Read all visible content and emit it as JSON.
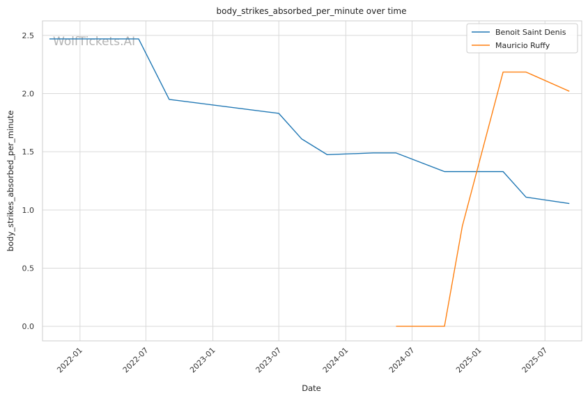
{
  "chart_data": {
    "type": "line",
    "title": "body_strikes_absorbed_per_minute over time",
    "xlabel": "Date",
    "ylabel": "body_strikes_absorbed_per_minute",
    "watermark": "WolfTickets.AI",
    "x_ticks": [
      "2022-01",
      "2022-07",
      "2023-01",
      "2023-07",
      "2024-01",
      "2024-07",
      "2025-01",
      "2025-07"
    ],
    "y_ticks": [
      0.0,
      0.5,
      1.0,
      1.5,
      2.0,
      2.5
    ],
    "y_tick_labels": [
      "0.0",
      "0.5",
      "1.0",
      "1.5",
      "2.0",
      "2.5"
    ],
    "xlim": [
      "2021-09-20",
      "2025-10-10"
    ],
    "ylim": [
      -0.125,
      2.625
    ],
    "grid": true,
    "legend_position": "top-right",
    "series": [
      {
        "name": "Benoit Saint Denis",
        "color": "#1f77b4",
        "points": [
          {
            "x": "2021-10-09",
            "y": 2.47
          },
          {
            "x": "2022-06-11",
            "y": 2.47
          },
          {
            "x": "2022-09-03",
            "y": 1.95
          },
          {
            "x": "2023-07-01",
            "y": 1.83
          },
          {
            "x": "2023-09-02",
            "y": 1.61
          },
          {
            "x": "2023-11-11",
            "y": 1.475
          },
          {
            "x": "2024-03-16",
            "y": 1.49
          },
          {
            "x": "2024-05-18",
            "y": 1.49
          },
          {
            "x": "2024-09-28",
            "y": 1.33
          },
          {
            "x": "2025-03-08",
            "y": 1.33
          },
          {
            "x": "2025-05-10",
            "y": 1.11
          },
          {
            "x": "2025-09-06",
            "y": 1.055
          }
        ]
      },
      {
        "name": "Mauricio Ruffy",
        "color": "#ff7f0e",
        "points": [
          {
            "x": "2024-05-18",
            "y": 0.0
          },
          {
            "x": "2024-09-28",
            "y": 0.0
          },
          {
            "x": "2024-11-16",
            "y": 0.86
          },
          {
            "x": "2025-03-08",
            "y": 2.185
          },
          {
            "x": "2025-05-10",
            "y": 2.185
          },
          {
            "x": "2025-09-06",
            "y": 2.02
          }
        ]
      }
    ]
  }
}
